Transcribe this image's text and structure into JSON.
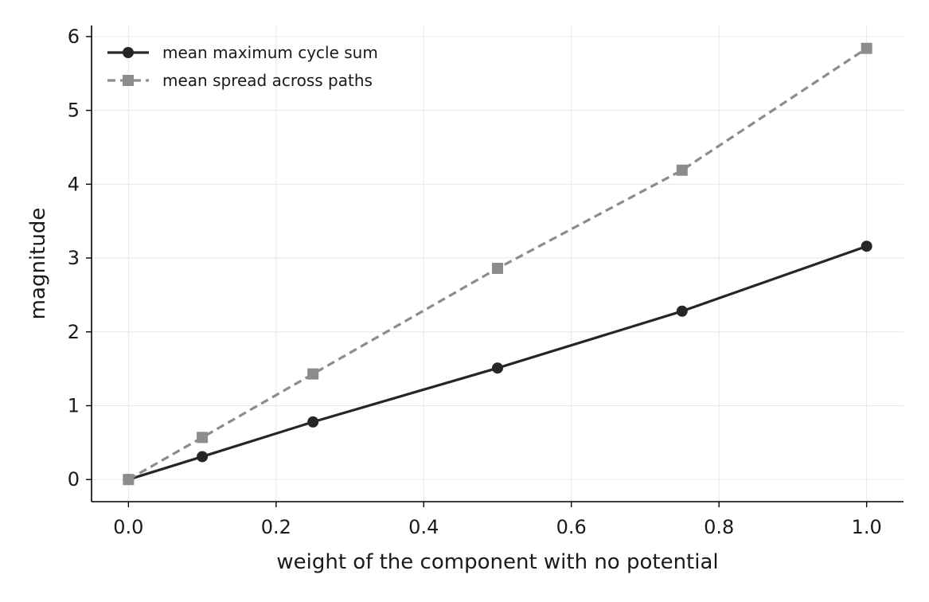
{
  "chart_data": {
    "type": "line",
    "title": "",
    "xlabel": "weight of the component with no potential",
    "ylabel": "magnitude",
    "xlim": [
      -0.05,
      1.05
    ],
    "ylim": [
      -0.3,
      6.15
    ],
    "xticks": [
      0.0,
      0.2,
      0.4,
      0.6,
      0.8,
      1.0
    ],
    "xtick_labels": [
      "0.0",
      "0.2",
      "0.4",
      "0.6",
      "0.8",
      "1.0"
    ],
    "yticks": [
      0,
      1,
      2,
      3,
      4,
      5,
      6
    ],
    "ytick_labels": [
      "0",
      "1",
      "2",
      "3",
      "4",
      "5",
      "6"
    ],
    "grid": true,
    "legend_position": "top-left",
    "series": [
      {
        "name": "mean maximum cycle sum",
        "color": "#262626",
        "line_style": "solid",
        "marker": "circle",
        "x": [
          0.0,
          0.1,
          0.25,
          0.5,
          0.75,
          1.0
        ],
        "y": [
          0.0,
          0.31,
          0.78,
          1.51,
          2.28,
          3.16
        ]
      },
      {
        "name": "mean spread across paths",
        "color": "#8c8c8c",
        "line_style": "dashed",
        "marker": "square",
        "x": [
          0.0,
          0.1,
          0.25,
          0.5,
          0.75,
          1.0
        ],
        "y": [
          0.0,
          0.57,
          1.43,
          2.86,
          4.19,
          5.84
        ]
      }
    ]
  }
}
